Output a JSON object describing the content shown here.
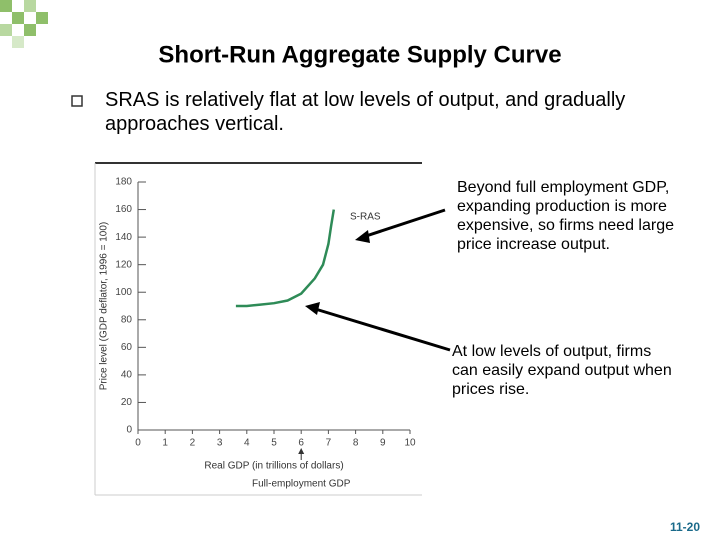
{
  "slide": {
    "title": "Short-Run Aggregate Supply Curve",
    "bullet": "SRAS is relatively flat at low levels of output, and gradually approaches vertical.",
    "annotations": [
      {
        "lines": [
          "Beyond full employment GDP,",
          "expanding production is more",
          "expensive, so firms need large",
          "price increase output."
        ]
      },
      {
        "lines": [
          "At low levels of output, firms",
          "can easily expand output when",
          "prices rise."
        ]
      }
    ],
    "page_number": "11-20"
  },
  "chart_data": {
    "type": "line",
    "x_label": "Real GDP (in trillions of dollars)",
    "y_label": "Price level (GDP deflator, 1996 = 100)",
    "x": [
      3.6,
      4,
      4.5,
      5,
      5.5,
      6,
      6.5,
      6.8,
      7,
      7.1,
      7.2
    ],
    "series": [
      {
        "name": "S-RAS",
        "color": "#2e8b57",
        "values": [
          90,
          90,
          91,
          92,
          94,
          99,
          110,
          120,
          135,
          148,
          160
        ]
      }
    ],
    "xlim": [
      0,
      10
    ],
    "xticks": [
      0,
      1,
      2,
      3,
      4,
      5,
      6,
      7,
      8,
      9,
      10
    ],
    "ylim": [
      0,
      180
    ],
    "yticks": [
      0,
      20,
      40,
      60,
      80,
      100,
      120,
      140,
      160,
      180
    ],
    "full_employment": {
      "label": "Full-employment GDP",
      "x": 6
    }
  }
}
